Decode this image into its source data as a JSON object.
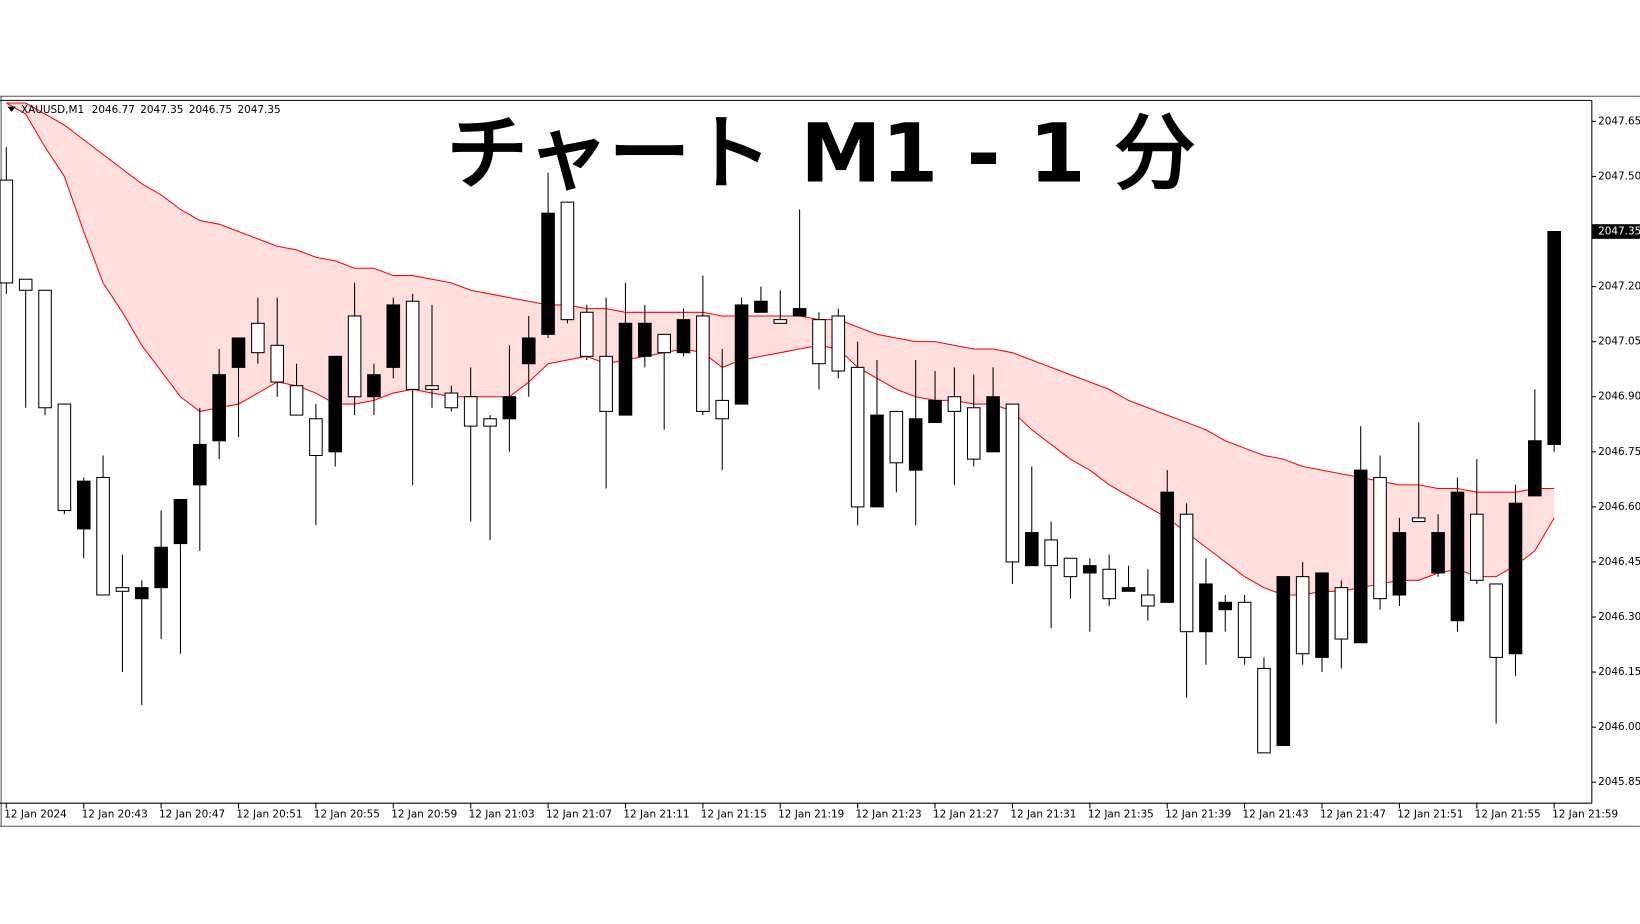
{
  "chart_data": {
    "type": "candlestick",
    "title": "チャート M1 - 1 分",
    "symbol": "XAUUSD,M1",
    "header_ohlc": [
      2046.77,
      2047.35,
      2046.75,
      2047.35
    ],
    "current_price": 2047.35,
    "categories": [
      "12 Jan 2024",
      null,
      null,
      null,
      "12 Jan 20:43",
      null,
      null,
      null,
      "12 Jan 20:47",
      null,
      null,
      null,
      "12 Jan 20:51",
      null,
      null,
      null,
      "12 Jan 20:55",
      null,
      null,
      null,
      "12 Jan 20:59",
      null,
      null,
      null,
      "12 Jan 21:03",
      null,
      null,
      null,
      "12 Jan 21:07",
      null,
      null,
      null,
      "12 Jan 21:11",
      null,
      null,
      null,
      "12 Jan 21:15",
      null,
      null,
      null,
      "12 Jan 21:19",
      null,
      null,
      null,
      "12 Jan 21:23",
      null,
      null,
      null,
      "12 Jan 21:27",
      null,
      null,
      null,
      "12 Jan 21:31",
      null,
      null,
      null,
      "12 Jan 21:35",
      null,
      null,
      null,
      "12 Jan 21:39",
      null,
      null,
      null,
      "12 Jan 21:43",
      null,
      null,
      null,
      "12 Jan 21:47",
      null,
      null,
      null,
      "12 Jan 21:51",
      null,
      null,
      null,
      "12 Jan 21:55",
      null,
      null,
      null,
      "12 Jan 21:59"
    ],
    "open": [
      2047.49,
      2047.22,
      2047.19,
      2046.88,
      2046.54,
      2046.68,
      2046.38,
      2046.35,
      2046.38,
      2046.5,
      2046.66,
      2046.78,
      2046.98,
      2047.1,
      2047.04,
      2046.93,
      2046.84,
      2046.75,
      2047.12,
      2046.9,
      2046.98,
      2047.16,
      2046.93,
      2046.91,
      2046.9,
      2046.84,
      2046.84,
      2046.99,
      2047.07,
      2047.43,
      2047.13,
      2047.01,
      2046.85,
      2047.01,
      2047.07,
      2047.02,
      2047.12,
      2046.89,
      2046.88,
      2047.13,
      2047.11,
      2047.12,
      2047.11,
      2047.12,
      2046.98,
      2046.6,
      2046.86,
      2046.7,
      2046.83,
      2046.9,
      2046.87,
      2046.75,
      2046.88,
      2046.44,
      2046.51,
      2046.46,
      2046.42,
      2046.43,
      2046.37,
      2046.36,
      2046.34,
      2046.58,
      2046.26,
      2046.32,
      2046.34,
      2046.16,
      2045.95,
      2046.41,
      2046.19,
      2046.38,
      2046.23,
      2046.68,
      2046.36,
      2046.57,
      2046.42,
      2046.29,
      2046.58,
      2046.39,
      2046.2,
      2046.63,
      2046.77
    ],
    "high": [
      2047.58,
      2047.22,
      2047.19,
      2046.88,
      2046.68,
      2046.74,
      2046.47,
      2046.4,
      2046.59,
      2046.62,
      2046.87,
      2047.03,
      2047.06,
      2047.17,
      2047.17,
      2046.99,
      2046.88,
      2047.01,
      2047.21,
      2046.99,
      2047.17,
      2047.18,
      2047.15,
      2046.93,
      2046.98,
      2046.85,
      2047.04,
      2047.12,
      2047.51,
      2047.43,
      2047.15,
      2047.17,
      2047.21,
      2047.15,
      2047.07,
      2047.14,
      2047.23,
      2047.03,
      2047.17,
      2047.2,
      2047.19,
      2047.41,
      2047.13,
      2047.14,
      2047.05,
      2047.0,
      2046.86,
      2047.0,
      2046.97,
      2046.98,
      2046.96,
      2046.98,
      2046.88,
      2046.71,
      2046.56,
      2046.46,
      2046.46,
      2046.47,
      2046.44,
      2046.43,
      2046.7,
      2046.61,
      2046.46,
      2046.36,
      2046.36,
      2046.19,
      2046.41,
      2046.45,
      2046.42,
      2046.4,
      2046.82,
      2046.74,
      2046.57,
      2046.83,
      2046.58,
      2046.68,
      2046.73,
      2046.39,
      2046.66,
      2046.92,
      2047.35
    ],
    "low": [
      2047.18,
      2046.87,
      2046.85,
      2046.58,
      2046.46,
      2046.36,
      2046.15,
      2046.06,
      2046.24,
      2046.2,
      2046.48,
      2046.73,
      2046.79,
      2046.99,
      2046.9,
      2046.85,
      2046.55,
      2046.71,
      2046.85,
      2046.85,
      2046.95,
      2046.66,
      2046.87,
      2046.86,
      2046.56,
      2046.51,
      2046.75,
      2046.9,
      2047.06,
      2047.1,
      2047.0,
      2046.65,
      2046.85,
      2046.98,
      2046.81,
      2047.01,
      2046.85,
      2046.7,
      2046.88,
      2047.13,
      2047.1,
      2047.12,
      2046.92,
      2046.95,
      2046.55,
      2046.6,
      2046.64,
      2046.55,
      2046.83,
      2046.66,
      2046.71,
      2046.75,
      2046.39,
      2046.44,
      2046.27,
      2046.35,
      2046.26,
      2046.33,
      2046.37,
      2046.29,
      2046.34,
      2046.08,
      2046.17,
      2046.26,
      2046.17,
      2045.93,
      2045.95,
      2046.17,
      2046.15,
      2046.16,
      2046.23,
      2046.32,
      2046.33,
      2046.56,
      2046.41,
      2046.26,
      2046.39,
      2046.01,
      2046.14,
      2046.63,
      2046.75
    ],
    "close": [
      2047.21,
      2047.19,
      2046.87,
      2046.59,
      2046.67,
      2046.36,
      2046.37,
      2046.38,
      2046.49,
      2046.62,
      2046.77,
      2046.96,
      2047.06,
      2047.02,
      2046.94,
      2046.85,
      2046.74,
      2047.01,
      2046.9,
      2046.96,
      2047.15,
      2046.92,
      2046.92,
      2046.87,
      2046.82,
      2046.82,
      2046.9,
      2047.06,
      2047.4,
      2047.11,
      2047.01,
      2046.86,
      2047.1,
      2047.1,
      2047.02,
      2047.11,
      2046.86,
      2046.84,
      2047.15,
      2047.16,
      2047.1,
      2047.14,
      2046.99,
      2046.97,
      2046.6,
      2046.85,
      2046.72,
      2046.84,
      2046.89,
      2046.86,
      2046.73,
      2046.9,
      2046.45,
      2046.53,
      2046.44,
      2046.41,
      2046.44,
      2046.35,
      2046.38,
      2046.33,
      2046.64,
      2046.26,
      2046.39,
      2046.34,
      2046.19,
      2045.93,
      2046.41,
      2046.2,
      2046.42,
      2046.24,
      2046.7,
      2046.35,
      2046.53,
      2046.56,
      2046.53,
      2046.64,
      2046.4,
      2046.19,
      2046.61,
      2046.78,
      2047.35
    ],
    "ribbon": [
      {
        "color": "#ff0000",
        "values": [
          2047.7,
          2047.7,
          2047.67,
          2047.64,
          2047.6,
          2047.56,
          2047.52,
          2047.48,
          2047.45,
          2047.41,
          2047.38,
          2047.37,
          2047.35,
          2047.33,
          2047.31,
          2047.3,
          2047.28,
          2047.27,
          2047.25,
          2047.25,
          2047.23,
          2047.23,
          2047.22,
          2047.21,
          2047.19,
          2047.18,
          2047.17,
          2047.16,
          2047.15,
          2047.15,
          2047.14,
          2047.14,
          2047.13,
          2047.13,
          2047.13,
          2047.13,
          2047.13,
          2047.12,
          2047.12,
          2047.12,
          2047.12,
          2047.12,
          2047.11,
          2047.11,
          2047.09,
          2047.07,
          2047.06,
          2047.05,
          2047.05,
          2047.04,
          2047.03,
          2047.03,
          2047.02,
          2047.0,
          2046.98,
          2046.96,
          2046.94,
          2046.92,
          2046.89,
          2046.87,
          2046.85,
          2046.83,
          2046.81,
          2046.78,
          2046.76,
          2046.74,
          2046.73,
          2046.71,
          2046.7,
          2046.69,
          2046.68,
          2046.67,
          2046.66,
          2046.66,
          2046.65,
          2046.65,
          2046.64,
          2046.64,
          2046.64,
          2046.65,
          2046.65
        ]
      },
      {
        "color": "#ff0000",
        "values": [
          2047.7,
          2047.67,
          2047.58,
          2047.5,
          2047.35,
          2047.21,
          2047.13,
          2047.04,
          2046.97,
          2046.9,
          2046.86,
          2046.87,
          2046.88,
          2046.91,
          2046.94,
          2046.93,
          2046.91,
          2046.88,
          2046.88,
          2046.89,
          2046.91,
          2046.92,
          2046.91,
          2046.9,
          2046.9,
          2046.9,
          2046.9,
          2046.94,
          2046.99,
          2047.0,
          2047.01,
          2046.99,
          2047.0,
          2047.01,
          2047.02,
          2047.03,
          2047.02,
          2046.98,
          2047.0,
          2047.01,
          2047.02,
          2047.03,
          2047.04,
          2047.03,
          2046.98,
          2046.95,
          2046.92,
          2046.9,
          2046.89,
          2046.89,
          2046.88,
          2046.88,
          2046.86,
          2046.81,
          2046.77,
          2046.73,
          2046.7,
          2046.66,
          2046.63,
          2046.6,
          2046.57,
          2046.53,
          2046.49,
          2046.45,
          2046.41,
          2046.38,
          2046.36,
          2046.36,
          2046.37,
          2046.37,
          2046.38,
          2046.39,
          2046.4,
          2046.4,
          2046.42,
          2046.43,
          2046.41,
          2046.41,
          2046.44,
          2046.48,
          2046.57
        ]
      }
    ],
    "ylim": [
      2045.79,
      2047.71
    ],
    "yticks": [
      2047.65,
      {
        "value": 2047.5,
        "label": "2047.50"
      },
      2047.35,
      {
        "value": 2047.2,
        "label": "2047.20"
      },
      2047.05,
      {
        "value": 2046.9,
        "label": "2046.90"
      },
      2046.75,
      {
        "value": 2046.6,
        "label": "2046.60"
      },
      2046.45,
      {
        "value": 2046.3,
        "label": "2046.30"
      },
      2046.15,
      {
        "value": 2046,
        "label": "2046.00"
      },
      2045.85
    ],
    "up_color": "#000000",
    "down_color": "#ffffff"
  }
}
